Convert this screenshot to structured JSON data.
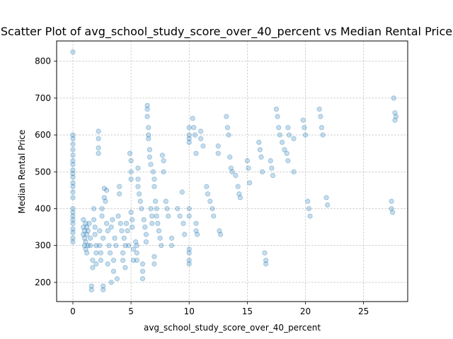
{
  "chart_data": {
    "type": "scatter",
    "title": "Scatter Plot of avg_school_study_score_over_40_percent vs Median Rental Price",
    "xlabel": "avg_school_study_score_over_40_percent",
    "ylabel": "Median Rental Price",
    "xlim": [
      -1.4,
      28.8
    ],
    "ylim": [
      148,
      855
    ],
    "xticks": [
      0,
      5,
      10,
      15,
      20,
      25
    ],
    "yticks": [
      200,
      300,
      400,
      500,
      600,
      700,
      800
    ],
    "grid": true,
    "point_color": "#1f77b4",
    "point_alpha": 0.25,
    "points": [
      [
        0,
        825
      ],
      [
        0,
        600
      ],
      [
        0,
        590
      ],
      [
        0,
        575
      ],
      [
        0,
        560
      ],
      [
        0,
        545
      ],
      [
        0,
        530
      ],
      [
        0,
        520
      ],
      [
        0,
        505
      ],
      [
        0,
        495
      ],
      [
        0,
        485
      ],
      [
        0,
        470
      ],
      [
        0,
        460
      ],
      [
        0,
        445
      ],
      [
        0,
        430
      ],
      [
        0,
        400
      ],
      [
        0,
        390
      ],
      [
        0,
        380
      ],
      [
        0,
        370
      ],
      [
        0,
        360
      ],
      [
        0,
        345
      ],
      [
        0,
        335
      ],
      [
        0,
        320
      ],
      [
        0,
        310
      ],
      [
        0.9,
        370
      ],
      [
        0.9,
        350
      ],
      [
        0.9,
        330
      ],
      [
        1.0,
        340
      ],
      [
        1.0,
        320
      ],
      [
        1.0,
        300
      ],
      [
        1.1,
        360
      ],
      [
        1.1,
        310
      ],
      [
        1.1,
        290
      ],
      [
        1.2,
        350
      ],
      [
        1.2,
        330
      ],
      [
        1.2,
        280
      ],
      [
        1.3,
        340
      ],
      [
        1.3,
        300
      ],
      [
        1.4,
        360
      ],
      [
        1.5,
        320
      ],
      [
        1.5,
        300
      ],
      [
        1.6,
        190
      ],
      [
        1.6,
        180
      ],
      [
        1.7,
        240
      ],
      [
        1.7,
        260
      ],
      [
        1.8,
        400
      ],
      [
        1.8,
        370
      ],
      [
        1.9,
        350
      ],
      [
        1.9,
        330
      ],
      [
        2.0,
        300
      ],
      [
        2.0,
        280
      ],
      [
        2.0,
        250
      ],
      [
        2.2,
        610
      ],
      [
        2.2,
        590
      ],
      [
        2.2,
        565
      ],
      [
        2.2,
        550
      ],
      [
        2.3,
        340
      ],
      [
        2.3,
        300
      ],
      [
        2.4,
        280
      ],
      [
        2.4,
        260
      ],
      [
        2.5,
        400
      ],
      [
        2.5,
        380
      ],
      [
        2.6,
        320
      ],
      [
        2.6,
        190
      ],
      [
        2.6,
        180
      ],
      [
        2.7,
        455
      ],
      [
        2.7,
        430
      ],
      [
        2.8,
        420
      ],
      [
        2.9,
        450
      ],
      [
        2.9,
        360
      ],
      [
        3.0,
        340
      ],
      [
        3.0,
        250
      ],
      [
        3.1,
        300
      ],
      [
        3.2,
        280
      ],
      [
        3.3,
        350
      ],
      [
        3.3,
        200
      ],
      [
        3.4,
        370
      ],
      [
        3.5,
        260
      ],
      [
        3.5,
        230
      ],
      [
        3.6,
        320
      ],
      [
        3.7,
        300
      ],
      [
        3.8,
        210
      ],
      [
        3.9,
        380
      ],
      [
        4.0,
        460
      ],
      [
        4.0,
        440
      ],
      [
        4.1,
        360
      ],
      [
        4.2,
        340
      ],
      [
        4.3,
        280
      ],
      [
        4.3,
        260
      ],
      [
        4.4,
        320
      ],
      [
        4.5,
        300
      ],
      [
        4.5,
        240
      ],
      [
        4.6,
        360
      ],
      [
        4.7,
        340
      ],
      [
        4.8,
        300
      ],
      [
        4.9,
        550
      ],
      [
        5.0,
        530
      ],
      [
        5.0,
        500
      ],
      [
        5.0,
        480
      ],
      [
        5.0,
        390
      ],
      [
        5.1,
        370
      ],
      [
        5.1,
        350
      ],
      [
        5.2,
        290
      ],
      [
        5.2,
        260
      ],
      [
        5.4,
        310
      ],
      [
        5.5,
        300
      ],
      [
        5.5,
        280
      ],
      [
        5.5,
        260
      ],
      [
        5.6,
        510
      ],
      [
        5.6,
        480
      ],
      [
        5.6,
        460
      ],
      [
        5.7,
        440
      ],
      [
        5.8,
        420
      ],
      [
        5.9,
        400
      ],
      [
        6.0,
        250
      ],
      [
        6.0,
        230
      ],
      [
        6.0,
        210
      ],
      [
        6.1,
        370
      ],
      [
        6.2,
        350
      ],
      [
        6.3,
        330
      ],
      [
        6.3,
        310
      ],
      [
        6.4,
        680
      ],
      [
        6.4,
        670
      ],
      [
        6.4,
        650
      ],
      [
        6.5,
        620
      ],
      [
        6.5,
        600
      ],
      [
        6.5,
        590
      ],
      [
        6.6,
        560
      ],
      [
        6.6,
        540
      ],
      [
        6.7,
        520
      ],
      [
        6.7,
        400
      ],
      [
        6.8,
        380
      ],
      [
        6.8,
        360
      ],
      [
        6.9,
        500
      ],
      [
        7.0,
        480
      ],
      [
        7.0,
        460
      ],
      [
        7.1,
        420
      ],
      [
        7.2,
        400
      ],
      [
        7.2,
        380
      ],
      [
        7.3,
        360
      ],
      [
        7.4,
        340
      ],
      [
        7.5,
        320
      ],
      [
        7.6,
        300
      ],
      [
        7.0,
        270
      ],
      [
        7.0,
        250
      ],
      [
        7.7,
        545
      ],
      [
        7.8,
        530
      ],
      [
        7.8,
        500
      ],
      [
        8.0,
        420
      ],
      [
        8.1,
        400
      ],
      [
        8.2,
        380
      ],
      [
        8.5,
        320
      ],
      [
        8.5,
        300
      ],
      [
        9.0,
        400
      ],
      [
        9.2,
        380
      ],
      [
        9.4,
        445
      ],
      [
        9.5,
        360
      ],
      [
        9.6,
        330
      ],
      [
        10.0,
        620
      ],
      [
        10.0,
        600
      ],
      [
        10.0,
        590
      ],
      [
        10.0,
        580
      ],
      [
        10.0,
        400
      ],
      [
        10.0,
        380
      ],
      [
        10.0,
        290
      ],
      [
        10.0,
        280
      ],
      [
        10.0,
        260
      ],
      [
        10.0,
        250
      ],
      [
        10.3,
        645
      ],
      [
        10.4,
        620
      ],
      [
        10.5,
        600
      ],
      [
        10.6,
        550
      ],
      [
        10.6,
        360
      ],
      [
        10.6,
        340
      ],
      [
        10.7,
        330
      ],
      [
        11.0,
        610
      ],
      [
        11.0,
        590
      ],
      [
        11.2,
        570
      ],
      [
        11.5,
        460
      ],
      [
        11.6,
        440
      ],
      [
        11.8,
        420
      ],
      [
        12.0,
        400
      ],
      [
        12.1,
        380
      ],
      [
        12.5,
        570
      ],
      [
        12.5,
        550
      ],
      [
        12.6,
        340
      ],
      [
        12.7,
        330
      ],
      [
        13.2,
        650
      ],
      [
        13.3,
        620
      ],
      [
        13.4,
        600
      ],
      [
        13.5,
        540
      ],
      [
        13.6,
        510
      ],
      [
        13.7,
        500
      ],
      [
        14.0,
        490
      ],
      [
        14.2,
        460
      ],
      [
        14.3,
        440
      ],
      [
        14.4,
        430
      ],
      [
        15.0,
        530
      ],
      [
        15.1,
        510
      ],
      [
        15.2,
        470
      ],
      [
        16.0,
        580
      ],
      [
        16.1,
        560
      ],
      [
        16.2,
        540
      ],
      [
        16.3,
        500
      ],
      [
        16.5,
        280
      ],
      [
        16.6,
        260
      ],
      [
        16.6,
        250
      ],
      [
        17.0,
        530
      ],
      [
        17.1,
        510
      ],
      [
        17.2,
        490
      ],
      [
        17.5,
        670
      ],
      [
        17.6,
        650
      ],
      [
        17.7,
        620
      ],
      [
        17.8,
        600
      ],
      [
        18.0,
        580
      ],
      [
        18.2,
        560
      ],
      [
        18.4,
        550
      ],
      [
        18.5,
        530
      ],
      [
        18.5,
        620
      ],
      [
        18.6,
        600
      ],
      [
        19.0,
        590
      ],
      [
        19.0,
        500
      ],
      [
        19.8,
        640
      ],
      [
        19.9,
        620
      ],
      [
        20.0,
        600
      ],
      [
        20.2,
        420
      ],
      [
        20.3,
        400
      ],
      [
        20.4,
        380
      ],
      [
        21.2,
        670
      ],
      [
        21.3,
        650
      ],
      [
        21.4,
        620
      ],
      [
        21.5,
        600
      ],
      [
        21.8,
        430
      ],
      [
        21.9,
        410
      ],
      [
        27.4,
        420
      ],
      [
        27.4,
        400
      ],
      [
        27.5,
        390
      ],
      [
        27.6,
        700
      ],
      [
        27.7,
        660
      ],
      [
        27.7,
        640
      ],
      [
        27.8,
        650
      ]
    ]
  }
}
